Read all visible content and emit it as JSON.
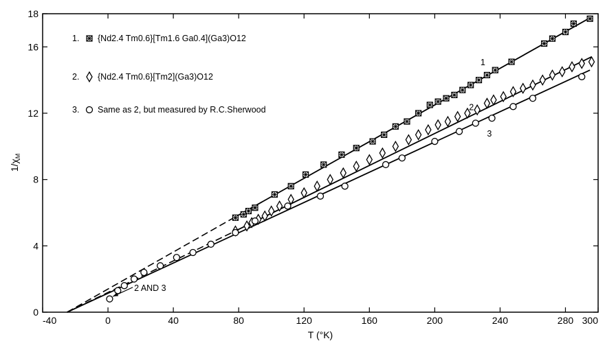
{
  "chart_data": {
    "type": "scatter",
    "xlabel": "T (°K)",
    "ylabel": "1/χ",
    "ylabel_sub": "M",
    "xlim": [
      -40,
      300
    ],
    "ylim": [
      0,
      18
    ],
    "x_ticks": [
      -40,
      0,
      40,
      80,
      120,
      160,
      200,
      240,
      280,
      300
    ],
    "y_ticks": [
      0,
      4,
      8,
      12,
      16,
      18
    ],
    "grid": false,
    "legend": [
      {
        "prefix": "1.",
        "marker": "boxed-x",
        "text": "{Nd2.4 Tm0.6}[Tm1.6 Ga0.4](Ga3)O12"
      },
      {
        "prefix": "2.",
        "marker": "diamond",
        "text": "{Nd2.4 Tm0.6}[Tm2](Ga3)O12"
      },
      {
        "prefix": "3.",
        "marker": "circle",
        "text": "Same as 2, but measured by R.C.Sherwood"
      }
    ],
    "series": [
      {
        "name": "1",
        "marker": "boxed-x",
        "x": [
          78,
          83,
          86,
          90,
          102,
          112,
          121,
          132,
          143,
          152,
          162,
          169,
          176,
          183,
          190,
          197,
          202,
          207,
          212,
          217,
          222,
          227,
          232,
          237,
          247,
          267,
          272,
          280,
          285,
          295
        ],
        "y": [
          5.7,
          5.9,
          6.1,
          6.3,
          7.1,
          7.6,
          8.3,
          8.9,
          9.5,
          9.9,
          10.3,
          10.7,
          11.2,
          11.5,
          12.0,
          12.5,
          12.7,
          12.9,
          13.1,
          13.4,
          13.7,
          14.0,
          14.3,
          14.6,
          15.1,
          16.2,
          16.5,
          16.9,
          17.4,
          17.7
        ],
        "fit_line": {
          "x": [
            78,
            295
          ],
          "y": [
            5.75,
            17.75
          ]
        },
        "extrapolation": {
          "x": [
            -25,
            78
          ],
          "y": [
            0,
            5.75
          ],
          "style": "dashed"
        }
      },
      {
        "name": "2",
        "marker": "diamond",
        "x": [
          78,
          85,
          88,
          92,
          96,
          100,
          105,
          112,
          120,
          128,
          136,
          144,
          152,
          160,
          168,
          176,
          184,
          190,
          196,
          202,
          208,
          214,
          220,
          226,
          232,
          236,
          242,
          248,
          254,
          260,
          266,
          272,
          278,
          284,
          290,
          296
        ],
        "y": [
          4.9,
          5.2,
          5.4,
          5.6,
          5.8,
          6.1,
          6.4,
          6.8,
          7.2,
          7.6,
          8.0,
          8.4,
          8.8,
          9.2,
          9.6,
          10.0,
          10.4,
          10.7,
          11.0,
          11.3,
          11.5,
          11.8,
          12.0,
          12.2,
          12.6,
          12.8,
          13.0,
          13.3,
          13.5,
          13.7,
          14.0,
          14.3,
          14.5,
          14.8,
          15.0,
          15.1
        ],
        "fit_line": {
          "x": [
            78,
            296
          ],
          "y": [
            4.9,
            15.4
          ]
        },
        "extrapolation": {
          "x": [
            -25,
            78
          ],
          "y": [
            0,
            4.9
          ],
          "style": "dashed"
        }
      },
      {
        "name": "3",
        "marker": "circle",
        "x": [
          1,
          6,
          10,
          16,
          22,
          32,
          42,
          52,
          63,
          78,
          90,
          110,
          130,
          145,
          170,
          180,
          200,
          215,
          225,
          235,
          248,
          260,
          290
        ],
        "y": [
          0.8,
          1.3,
          1.6,
          2.0,
          2.4,
          2.8,
          3.3,
          3.6,
          4.1,
          4.8,
          5.5,
          6.4,
          7.0,
          7.6,
          8.9,
          9.3,
          10.3,
          10.9,
          11.4,
          11.7,
          12.4,
          12.9,
          14.2
        ],
        "fit_line": {
          "x": [
            -25,
            295
          ],
          "y": [
            0,
            14.6
          ]
        }
      }
    ],
    "annotations": [
      {
        "text": "1",
        "x": 228,
        "y": 15.1
      },
      {
        "text": "2",
        "x": 221,
        "y": 12.4
      },
      {
        "text": "3",
        "x": 232,
        "y": 10.8
      },
      {
        "text": "2 AND 3",
        "x": 16,
        "y": 1.5,
        "arrow_to": {
          "x": 3,
          "y": 0.95
        }
      }
    ]
  }
}
